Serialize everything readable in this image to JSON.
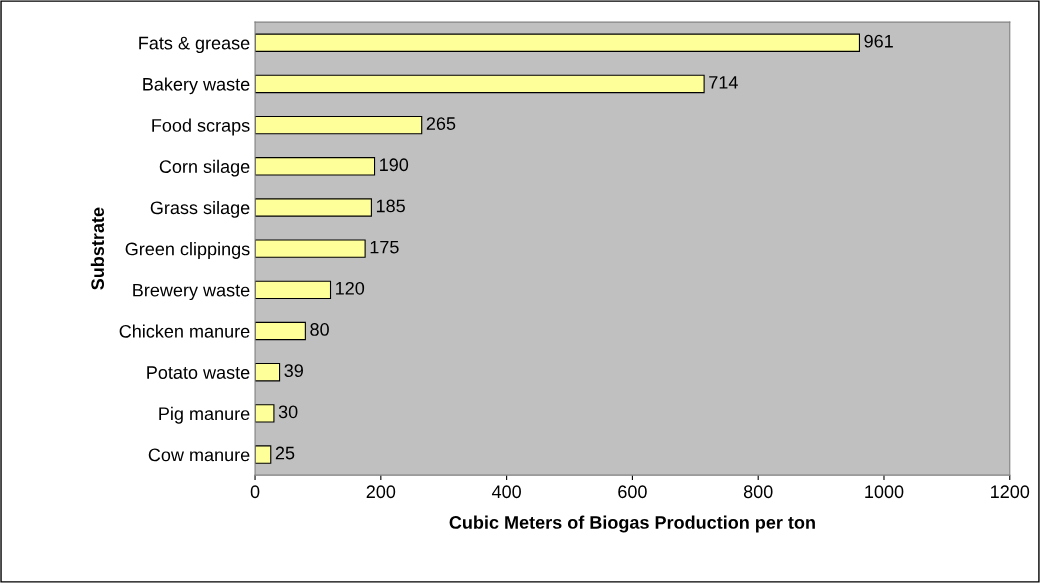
{
  "chart_data": {
    "type": "bar",
    "orientation": "horizontal",
    "xlabel": "Cubic Meters of Biogas Production per ton",
    "ylabel": "Substrate",
    "categories": [
      "Fats & grease",
      "Bakery waste",
      "Food scraps",
      "Corn silage",
      "Grass silage",
      "Green clippings",
      "Brewery waste",
      "Chicken manure",
      "Potato waste",
      "Pig manure",
      "Cow manure"
    ],
    "values": [
      961,
      714,
      265,
      190,
      185,
      175,
      120,
      80,
      39,
      30,
      25
    ],
    "color": "#ffff99",
    "data_labels": true,
    "grid": false,
    "xlim": [
      0,
      1200
    ],
    "xticks": [
      0,
      200,
      400,
      600,
      800,
      1000,
      1200
    ]
  }
}
